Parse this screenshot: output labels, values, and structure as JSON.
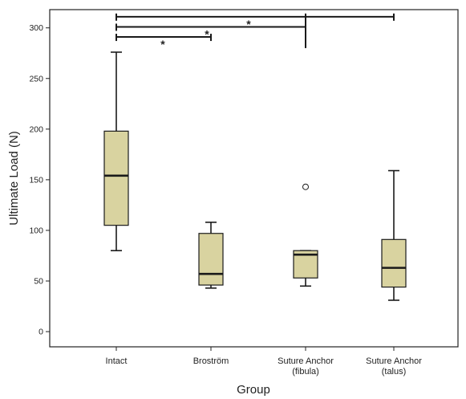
{
  "chart_data": {
    "type": "box",
    "xlabel": "Group",
    "ylabel": "Ultimate Load (N)",
    "ylim": [
      -15,
      318
    ],
    "yticks": [
      0,
      50,
      100,
      150,
      200,
      250,
      300
    ],
    "grid": false,
    "colors": {
      "box_fill": "#d9d3a0",
      "stroke": "#1a1a1a"
    },
    "categories": [
      {
        "label": [
          "Intact"
        ],
        "whisker_low": 80,
        "q1": 105,
        "median": 154,
        "q3": 198,
        "whisker_high": 276,
        "outliers": []
      },
      {
        "label": [
          "Broström"
        ],
        "whisker_low": 43,
        "q1": 46,
        "median": 57,
        "q3": 97,
        "whisker_high": 108,
        "outliers": []
      },
      {
        "label": [
          "Suture Anchor",
          "(fibula)"
        ],
        "whisker_low": 45,
        "q1": 53,
        "median": 76,
        "q3": 80,
        "whisker_high": 80,
        "outliers": [
          143
        ]
      },
      {
        "label": [
          "Suture Anchor",
          "(talus)"
        ],
        "whisker_low": 31,
        "q1": 44,
        "median": 63,
        "q3": 91,
        "whisker_high": 159,
        "outliers": []
      }
    ],
    "significance": [
      {
        "from": 0,
        "to": 1,
        "y": 291,
        "label": "*"
      },
      {
        "from": 0,
        "to": 2,
        "y": 301,
        "label": "*"
      },
      {
        "from": 0,
        "to": 3,
        "y": 311,
        "label": "*"
      }
    ]
  }
}
